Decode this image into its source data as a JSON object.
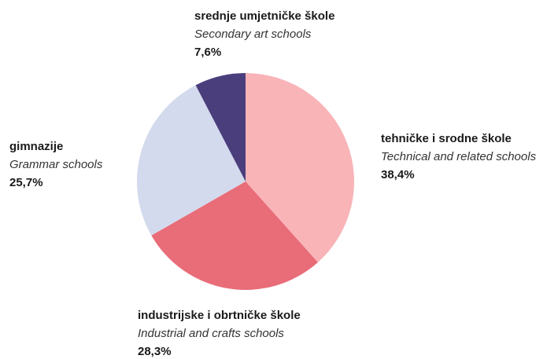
{
  "chart_data": {
    "type": "pie",
    "categories": [
      "tehničke i srodne škole",
      "industrijske i obrtničke škole",
      "gimnazije",
      "srednje umjetničke škole"
    ],
    "translations": [
      "Technical and related schools",
      "Industrial and crafts schools",
      "Grammar schools",
      "Secondary art schools"
    ],
    "values": [
      38.4,
      28.3,
      25.7,
      7.6
    ],
    "value_labels": [
      "38,4%",
      "28,3%",
      "25,7%",
      "7,6%"
    ],
    "colors": [
      "#f9b4b8",
      "#e96c79",
      "#d4daed",
      "#4a3e7d"
    ]
  }
}
